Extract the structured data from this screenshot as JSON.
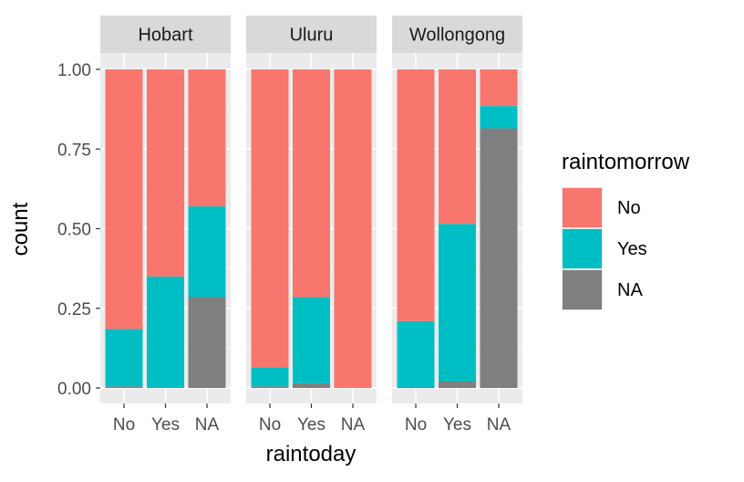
{
  "chart_data": {
    "type": "bar",
    "stacked": "fill",
    "xlabel": "raintoday",
    "ylabel": "count",
    "ylim": [
      0,
      1
    ],
    "y_ticks": [
      "0.00",
      "0.25",
      "0.50",
      "0.75",
      "1.00"
    ],
    "y_tick_values": [
      0,
      0.25,
      0.5,
      0.75,
      1
    ],
    "categories": [
      "No",
      "Yes",
      "NA"
    ],
    "legend": {
      "title": "raintomorrow",
      "position": "right",
      "entries": [
        {
          "label": "No",
          "color": "#F8766D"
        },
        {
          "label": "Yes",
          "color": "#00BFC4"
        },
        {
          "label": "NA",
          "color": "#7F7F7F"
        }
      ]
    },
    "stack_order_bottom_to_top": [
      "NA",
      "Yes",
      "No"
    ],
    "grid": true,
    "panels": [
      {
        "facet": "Hobart",
        "bars": [
          {
            "category": "No",
            "NA": 0.005,
            "Yes": 0.18,
            "No": 0.815
          },
          {
            "category": "Yes",
            "NA": 0.0,
            "Yes": 0.35,
            "No": 0.65
          },
          {
            "category": "NA",
            "NA": 0.285,
            "Yes": 0.285,
            "No": 0.43
          }
        ]
      },
      {
        "facet": "Uluru",
        "bars": [
          {
            "category": "No",
            "NA": 0.005,
            "Yes": 0.06,
            "No": 0.935
          },
          {
            "category": "Yes",
            "NA": 0.015,
            "Yes": 0.27,
            "No": 0.715
          },
          {
            "category": "NA",
            "NA": 0.0,
            "Yes": 0.0,
            "No": 1.0
          }
        ]
      },
      {
        "facet": "Wollongong",
        "bars": [
          {
            "category": "No",
            "NA": 0.003,
            "Yes": 0.207,
            "No": 0.79
          },
          {
            "category": "Yes",
            "NA": 0.02,
            "Yes": 0.495,
            "No": 0.485
          },
          {
            "category": "NA",
            "NA": 0.815,
            "Yes": 0.07,
            "No": 0.115
          }
        ]
      }
    ]
  }
}
